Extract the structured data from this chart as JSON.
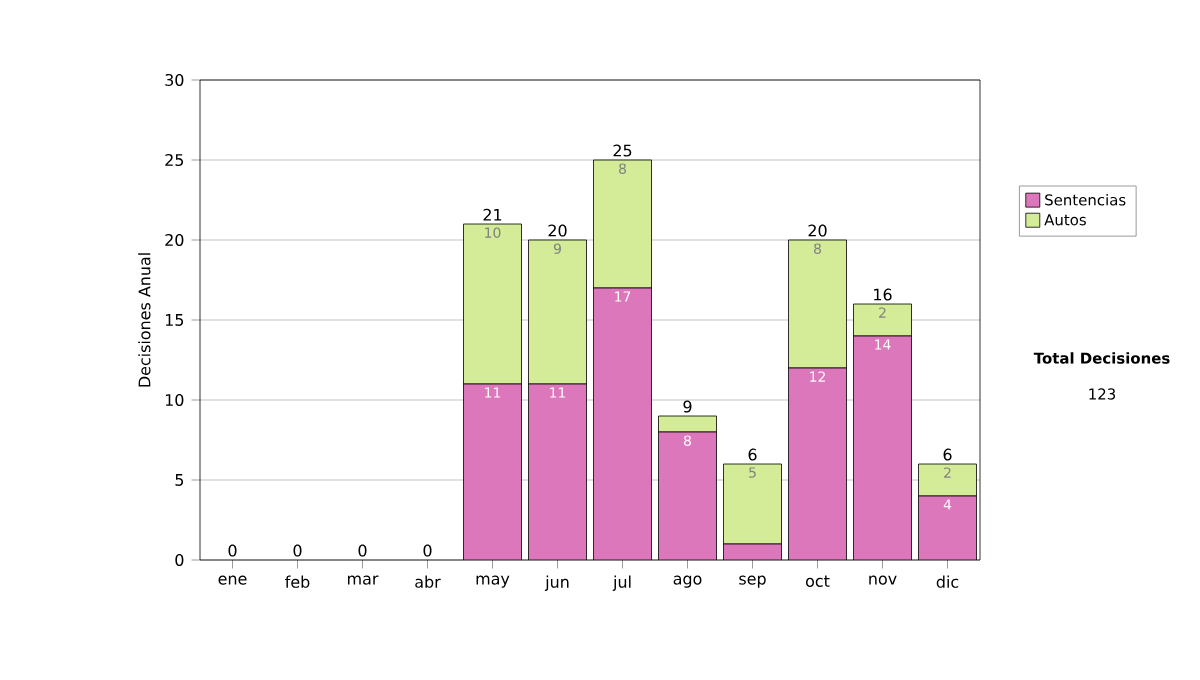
{
  "chart_data": {
    "type": "bar",
    "stacked": true,
    "ylabel": "Decisiones Anual",
    "categories": [
      "ene",
      "feb",
      "mar",
      "abr",
      "may",
      "jun",
      "jul",
      "ago",
      "sep",
      "oct",
      "nov",
      "dic"
    ],
    "series": [
      {
        "name": "Sentencias",
        "color": "#dd77bb",
        "values": [
          0,
          0,
          0,
          0,
          11,
          11,
          17,
          8,
          1,
          12,
          14,
          4
        ],
        "value_labels": [
          null,
          null,
          null,
          null,
          "11",
          "11",
          "17",
          "8",
          null,
          "12",
          "14",
          "4"
        ]
      },
      {
        "name": "Autos",
        "color": "#d4ec98",
        "values": [
          0,
          0,
          0,
          0,
          10,
          9,
          8,
          1,
          5,
          8,
          2,
          2
        ],
        "value_labels": [
          null,
          null,
          null,
          null,
          "10",
          "9",
          "8",
          null,
          "5",
          "8",
          "2",
          "2"
        ]
      }
    ],
    "totals": [
      "0",
      "0",
      "0",
      "0",
      "21",
      "20",
      "25",
      "9",
      "6",
      "20",
      "16",
      "6"
    ],
    "ylim": [
      0,
      30
    ],
    "yticks": [
      0,
      5,
      10,
      15,
      20,
      25,
      30
    ],
    "grid": "y",
    "legend": "right",
    "annotations": [
      "Total Decisiones",
      "123"
    ]
  }
}
